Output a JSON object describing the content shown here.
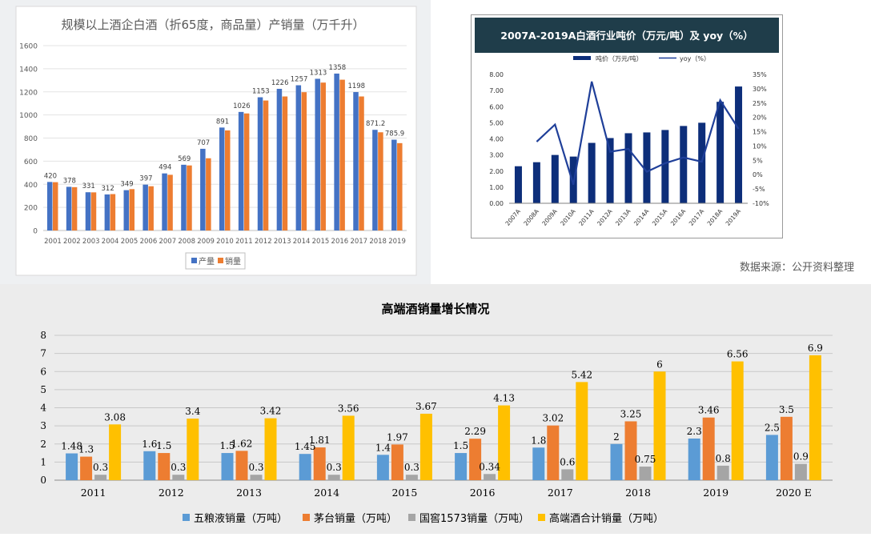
{
  "source_note": "数据来源：公开资料整理",
  "chart_data": [
    {
      "type": "bar",
      "title": "规模以上酒企白酒（折65度，商品量）产销量（万千升）",
      "categories": [
        "2001",
        "2002",
        "2003",
        "2004",
        "2005",
        "2006",
        "2007",
        "2008",
        "2009",
        "2010",
        "2011",
        "2012",
        "2013",
        "2014",
        "2015",
        "2016",
        "2017",
        "2018",
        "2019"
      ],
      "series": [
        {
          "name": "产量",
          "color": "#4472C4",
          "values": [
            420,
            378,
            331,
            312,
            349,
            397,
            494,
            569,
            707,
            891,
            1026,
            1153,
            1226,
            1257,
            1313,
            1358,
            1198,
            871.2,
            785.9
          ]
        },
        {
          "name": "销量",
          "color": "#ED7D31",
          "values": [
            418,
            375,
            330,
            315,
            358,
            383,
            482,
            563,
            625,
            866,
            1013,
            1125,
            1160,
            1197,
            1280,
            1305,
            1160,
            850,
            756
          ]
        }
      ],
      "data_labels": [
        "420",
        "378",
        "331",
        "312",
        "349",
        "397",
        "494",
        "569",
        "707",
        "891",
        "1026",
        "1153",
        "1226",
        "1257",
        "1313",
        "1358",
        "1198",
        "871.2",
        "785.9"
      ],
      "yticks": [
        "0",
        "200",
        "400",
        "600",
        "800",
        "1000",
        "1200",
        "1400",
        "1600"
      ],
      "ylim": [
        0,
        1600
      ],
      "grid": true,
      "legend": "bottom"
    },
    {
      "type": "bar",
      "title": "2007A-2019A白酒行业吨价（万元/吨）及 yoy（%）",
      "categories": [
        "2007A",
        "2008A",
        "2009A",
        "2010A",
        "2011A",
        "2012A",
        "2013A",
        "2014A",
        "2015A",
        "2016A",
        "2017A",
        "2018A",
        "2019A"
      ],
      "series": [
        {
          "name": "吨价（万元/吨）",
          "kind": "bar",
          "axis": "left",
          "color": "#0D2E7A",
          "values": [
            2.3,
            2.55,
            3.0,
            2.9,
            3.75,
            4.05,
            4.35,
            4.4,
            4.55,
            4.8,
            5.0,
            6.3,
            7.25
          ]
        },
        {
          "name": "yoy（%）",
          "kind": "line",
          "axis": "right",
          "color": "#1F3F99",
          "values": [
            null,
            11.5,
            17.5,
            -3.5,
            32.5,
            8,
            9,
            1,
            4,
            6,
            4.5,
            26,
            16
          ]
        }
      ],
      "yticks_left": [
        "0.00",
        "1.00",
        "2.00",
        "3.00",
        "4.00",
        "5.00",
        "6.00",
        "7.00",
        "8.00"
      ],
      "yticks_right": [
        "-10%",
        "-5%",
        "0%",
        "5%",
        "10%",
        "15%",
        "20%",
        "25%",
        "30%",
        "35%"
      ],
      "ylim_left": [
        0,
        8
      ],
      "ylim_right": [
        -10,
        35
      ],
      "legend": "top"
    },
    {
      "type": "bar",
      "title": "高端酒销量增长情况",
      "categories": [
        "2011",
        "2012",
        "2013",
        "2014",
        "2015",
        "2016",
        "2017",
        "2018",
        "2019",
        "2020 E"
      ],
      "series": [
        {
          "name": "五粮液销量（万吨）",
          "color": "#5B9BD5",
          "values": [
            1.48,
            1.6,
            1.5,
            1.45,
            1.4,
            1.5,
            1.8,
            2,
            2.3,
            2.5
          ],
          "labels": [
            "1.48",
            "1.6",
            "1.5",
            "1.45",
            "1.4",
            "1.5",
            "1.8",
            "2",
            "2.3",
            "2.5"
          ]
        },
        {
          "name": "茅台销量（万吨）",
          "color": "#ED7D31",
          "values": [
            1.3,
            1.5,
            1.62,
            1.81,
            1.97,
            2.29,
            3.02,
            3.25,
            3.46,
            3.5
          ],
          "labels": [
            "1.3",
            "1.5",
            "1.62",
            "1.81",
            "1.97",
            "2.29",
            "3.02",
            "3.25",
            "3.46",
            "3.5"
          ]
        },
        {
          "name": "国窖1573销量（万吨）",
          "color": "#A5A5A5",
          "values": [
            0.3,
            0.3,
            0.3,
            0.3,
            0.3,
            0.34,
            0.6,
            0.75,
            0.8,
            0.9
          ],
          "labels": [
            "0.3",
            "0.3",
            "0.3",
            "0.3",
            "0.3",
            "0.34",
            "0.6",
            "0.75",
            "0.8",
            "0.9"
          ]
        },
        {
          "name": "高端酒合计销量（万吨）",
          "color": "#FFC000",
          "values": [
            3.08,
            3.4,
            3.42,
            3.56,
            3.67,
            4.13,
            5.42,
            6,
            6.56,
            6.9
          ],
          "labels": [
            "3.08",
            "3.4",
            "3.42",
            "3.56",
            "3.67",
            "4.13",
            "5.42",
            "6",
            "6.56",
            "6.9"
          ]
        }
      ],
      "yticks": [
        "0",
        "1",
        "2",
        "3",
        "4",
        "5",
        "6",
        "7",
        "8"
      ],
      "ylim": [
        0,
        8
      ],
      "grid": true,
      "legend": "bottom"
    }
  ]
}
